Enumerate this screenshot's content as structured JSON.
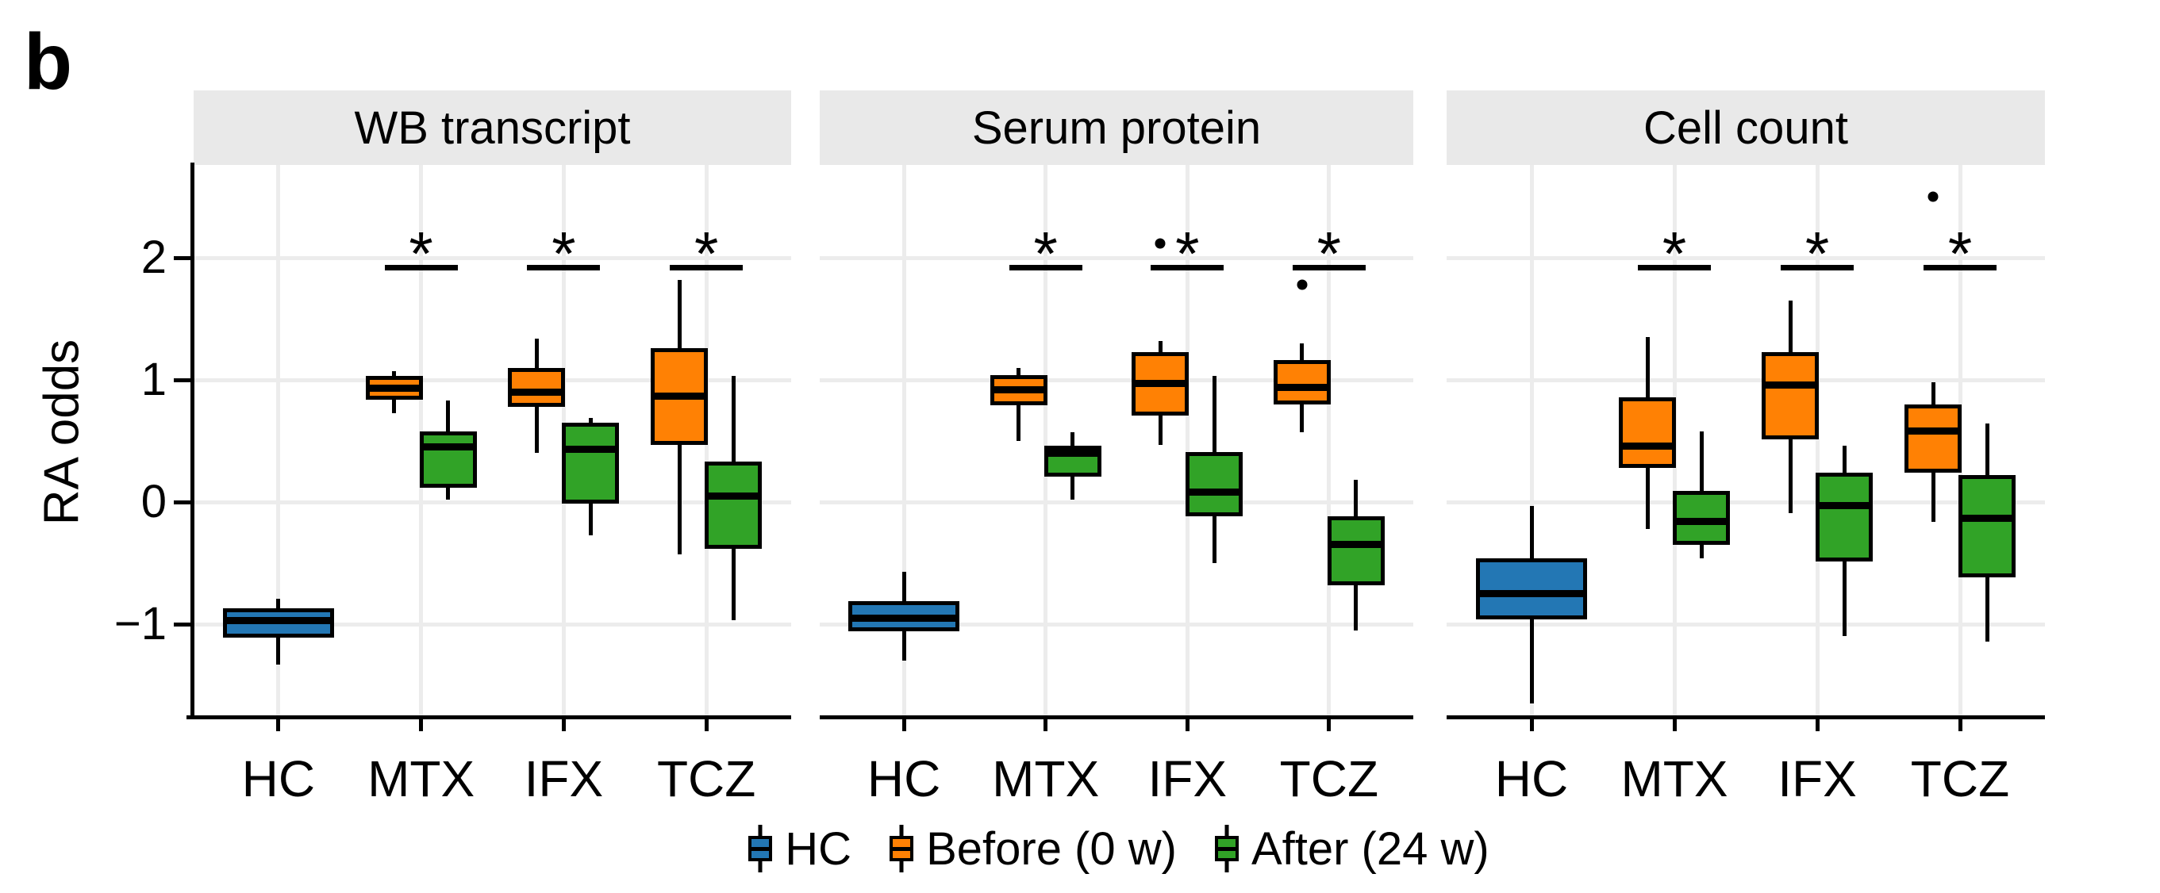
{
  "chart_data": {
    "type": "boxplot",
    "panel_label": "b",
    "ylabel": "RA odds",
    "yticks": [
      2,
      1,
      0,
      -1
    ],
    "ylim": [
      -1.79,
      2.81
    ],
    "grid": "on",
    "legend_position": "bottom",
    "categories": [
      "HC",
      "MTX",
      "IFX",
      "TCZ"
    ],
    "groups": [
      {
        "name": "HC",
        "label": "HC",
        "color": "#2377B4"
      },
      {
        "name": "Before",
        "label": "Before (0 w)",
        "color": "#FF8104"
      },
      {
        "name": "After",
        "label": "After (24 w)",
        "color": "#31A327"
      }
    ],
    "significance_bar_y": 1.92,
    "significance_star_y": 2.12,
    "facets": [
      {
        "title": "WB transcript",
        "boxes": [
          {
            "category": "HC",
            "group": "HC",
            "lo": -1.33,
            "q1": -1.11,
            "med": -0.97,
            "q3": -0.87,
            "hi": -0.79,
            "outliers": []
          },
          {
            "category": "MTX",
            "group": "Before",
            "lo": 0.73,
            "q1": 0.84,
            "med": 0.93,
            "q3": 1.03,
            "hi": 1.07,
            "outliers": []
          },
          {
            "category": "MTX",
            "group": "After",
            "lo": 0.02,
            "q1": 0.12,
            "med": 0.45,
            "q3": 0.58,
            "hi": 0.83,
            "outliers": []
          },
          {
            "category": "IFX",
            "group": "Before",
            "lo": 0.4,
            "q1": 0.78,
            "med": 0.9,
            "q3": 1.1,
            "hi": 1.34,
            "outliers": []
          },
          {
            "category": "IFX",
            "group": "After",
            "lo": -0.27,
            "q1": -0.01,
            "med": 0.43,
            "q3": 0.65,
            "hi": 0.69,
            "outliers": []
          },
          {
            "category": "TCZ",
            "group": "Before",
            "lo": -0.43,
            "q1": 0.47,
            "med": 0.87,
            "q3": 1.26,
            "hi": 1.82,
            "outliers": []
          },
          {
            "category": "TCZ",
            "group": "After",
            "lo": -0.97,
            "q1": -0.38,
            "med": 0.05,
            "q3": 0.33,
            "hi": 1.03,
            "outliers": []
          }
        ],
        "significance": [
          {
            "category": "MTX",
            "label": "*"
          },
          {
            "category": "IFX",
            "label": "*"
          },
          {
            "category": "TCZ",
            "label": "*"
          }
        ]
      },
      {
        "title": "Serum protein",
        "boxes": [
          {
            "category": "HC",
            "group": "HC",
            "lo": -1.3,
            "q1": -1.06,
            "med": -0.95,
            "q3": -0.81,
            "hi": -0.57,
            "outliers": []
          },
          {
            "category": "MTX",
            "group": "Before",
            "lo": 0.5,
            "q1": 0.79,
            "med": 0.92,
            "q3": 1.04,
            "hi": 1.1,
            "outliers": []
          },
          {
            "category": "MTX",
            "group": "After",
            "lo": 0.02,
            "q1": 0.21,
            "med": 0.4,
            "q3": 0.46,
            "hi": 0.57,
            "outliers": []
          },
          {
            "category": "IFX",
            "group": "Before",
            "lo": 0.47,
            "q1": 0.71,
            "med": 0.97,
            "q3": 1.23,
            "hi": 1.32,
            "outliers": [
              2.12
            ]
          },
          {
            "category": "IFX",
            "group": "After",
            "lo": -0.5,
            "q1": -0.12,
            "med": 0.08,
            "q3": 0.41,
            "hi": 1.03,
            "outliers": []
          },
          {
            "category": "TCZ",
            "group": "Before",
            "lo": 0.57,
            "q1": 0.8,
            "med": 0.94,
            "q3": 1.16,
            "hi": 1.3,
            "outliers": [
              1.78
            ]
          },
          {
            "category": "TCZ",
            "group": "After",
            "lo": -1.05,
            "q1": -0.68,
            "med": -0.35,
            "q3": -0.12,
            "hi": 0.18,
            "outliers": []
          }
        ],
        "significance": [
          {
            "category": "MTX",
            "label": "*"
          },
          {
            "category": "IFX",
            "label": "*"
          },
          {
            "category": "TCZ",
            "label": "*"
          }
        ]
      },
      {
        "title": "Cell count",
        "boxes": [
          {
            "category": "HC",
            "group": "HC",
            "lo": -1.65,
            "q1": -0.96,
            "med": -0.75,
            "q3": -0.46,
            "hi": -0.03,
            "outliers": []
          },
          {
            "category": "MTX",
            "group": "Before",
            "lo": -0.22,
            "q1": 0.28,
            "med": 0.46,
            "q3": 0.86,
            "hi": 1.35,
            "outliers": []
          },
          {
            "category": "MTX",
            "group": "After",
            "lo": -0.46,
            "q1": -0.35,
            "med": -0.16,
            "q3": 0.09,
            "hi": 0.58,
            "outliers": []
          },
          {
            "category": "IFX",
            "group": "Before",
            "lo": -0.09,
            "q1": 0.51,
            "med": 0.96,
            "q3": 1.23,
            "hi": 1.65,
            "outliers": []
          },
          {
            "category": "IFX",
            "group": "After",
            "lo": -1.1,
            "q1": -0.49,
            "med": -0.03,
            "q3": 0.24,
            "hi": 0.46,
            "outliers": []
          },
          {
            "category": "TCZ",
            "group": "Before",
            "lo": -0.16,
            "q1": 0.24,
            "med": 0.58,
            "q3": 0.8,
            "hi": 0.98,
            "outliers": [
              2.5
            ]
          },
          {
            "category": "TCZ",
            "group": "After",
            "lo": -1.14,
            "q1": -0.62,
            "med": -0.13,
            "q3": 0.22,
            "hi": 0.64,
            "outliers": []
          }
        ],
        "significance": [
          {
            "category": "MTX",
            "label": "*"
          },
          {
            "category": "IFX",
            "label": "*"
          },
          {
            "category": "TCZ",
            "label": "*"
          }
        ]
      }
    ]
  }
}
